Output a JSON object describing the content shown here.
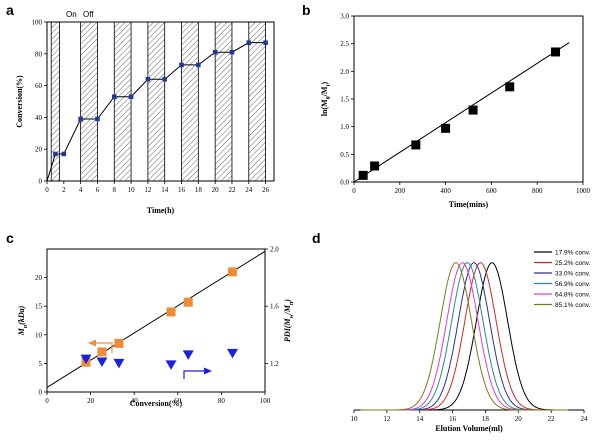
{
  "colors": {
    "blue": "#1f3c9c",
    "orange": "#ef8c3c",
    "triangle": "#1a22dd",
    "black": "#000000"
  },
  "chart_data": [
    {
      "panel": "a",
      "type": "line",
      "title": "",
      "xlabel": "Time(h)",
      "ylabel": "Conversion(%)",
      "xlim": [
        0,
        27
      ],
      "ylim": [
        0,
        100
      ],
      "xticks": [
        0,
        2,
        4,
        6,
        8,
        10,
        12,
        14,
        16,
        18,
        20,
        22,
        24,
        26
      ],
      "yticks": [
        0,
        20,
        40,
        60,
        80,
        100
      ],
      "annotations": [
        "On",
        "Off"
      ],
      "on_intervals": [
        [
          0.5,
          1.5
        ],
        [
          4,
          6
        ],
        [
          8,
          10
        ],
        [
          12,
          14
        ],
        [
          16,
          18
        ],
        [
          20,
          22
        ],
        [
          24,
          26
        ]
      ],
      "series": [
        {
          "x": [
            0,
            1,
            2,
            4,
            6,
            8,
            10,
            12,
            14,
            16,
            18,
            20,
            22,
            24,
            26
          ],
          "y": [
            0,
            17,
            17,
            39,
            39,
            53,
            53,
            64,
            64,
            73,
            73,
            81,
            81,
            87,
            87
          ]
        }
      ]
    },
    {
      "panel": "b",
      "type": "scatter",
      "title": "",
      "xlabel": "Time(mins)",
      "ylabel": "ln(M0/Mt)",
      "xlim": [
        0,
        1000
      ],
      "ylim": [
        0,
        3.0
      ],
      "xticks": [
        0,
        200,
        400,
        600,
        800,
        1000
      ],
      "yticks": [
        0.0,
        0.5,
        1.0,
        1.5,
        2.0,
        2.5,
        3.0
      ],
      "series": [
        {
          "x": [
            40,
            90,
            270,
            400,
            520,
            680,
            880
          ],
          "y": [
            0.12,
            0.29,
            0.67,
            0.97,
            1.3,
            1.72,
            2.35
          ]
        }
      ],
      "fit_line": {
        "x": [
          0,
          940
        ],
        "y": [
          0.0,
          2.52
        ]
      }
    },
    {
      "panel": "c",
      "type": "scatter",
      "title": "",
      "xlabel": "Conversion(%)",
      "ylabel": "Mn(kDa)",
      "ylabel_right": "PDI(Mw/Mn)",
      "xlim": [
        0,
        100
      ],
      "ylim": [
        0,
        25
      ],
      "ylim_right": [
        1.0,
        2.0
      ],
      "xticks": [
        0,
        20,
        40,
        60,
        80,
        100
      ],
      "yticks": [
        0,
        5,
        10,
        15,
        20
      ],
      "yticks_right": [
        1.2,
        1.6,
        2.0
      ],
      "series": [
        {
          "axis": "left",
          "x": [
            17.9,
            25.2,
            33.0,
            56.9,
            64.8,
            85.1
          ],
          "y": [
            5.2,
            7.0,
            8.5,
            14.0,
            15.7,
            21.0
          ]
        },
        {
          "axis": "right",
          "x": [
            17.9,
            25.2,
            33.0,
            56.9,
            64.8,
            85.1
          ],
          "y": [
            1.23,
            1.21,
            1.2,
            1.19,
            1.26,
            1.27
          ]
        }
      ],
      "fit_line": {
        "x": [
          0,
          100
        ],
        "y": [
          0.8,
          24.6
        ]
      }
    },
    {
      "panel": "d",
      "type": "line",
      "title": "",
      "xlabel": "Elution Volume(ml)",
      "ylabel": "",
      "xlim": [
        10,
        24
      ],
      "ylim": [
        0,
        1.1
      ],
      "xticks": [
        10,
        12,
        14,
        16,
        18,
        20,
        22,
        24
      ],
      "legend_position": "top-right",
      "series": [
        {
          "name": "17.9% conv.",
          "color": "#000000",
          "peak": 18.4,
          "width": 0.95
        },
        {
          "name": "25.2% conv.",
          "color": "#d4281e",
          "peak": 17.7,
          "width": 0.95
        },
        {
          "name": "33.0% conv.",
          "color": "#2a2f9a",
          "peak": 17.3,
          "width": 0.95
        },
        {
          "name": "56.9% conv.",
          "color": "#2a8a8a",
          "peak": 16.9,
          "width": 0.95
        },
        {
          "name": "64.8% conv.",
          "color": "#e03ad4",
          "peak": 16.6,
          "width": 0.95
        },
        {
          "name": "85.1% conv.",
          "color": "#7a7a1a",
          "peak": 16.2,
          "width": 0.95
        }
      ]
    }
  ]
}
